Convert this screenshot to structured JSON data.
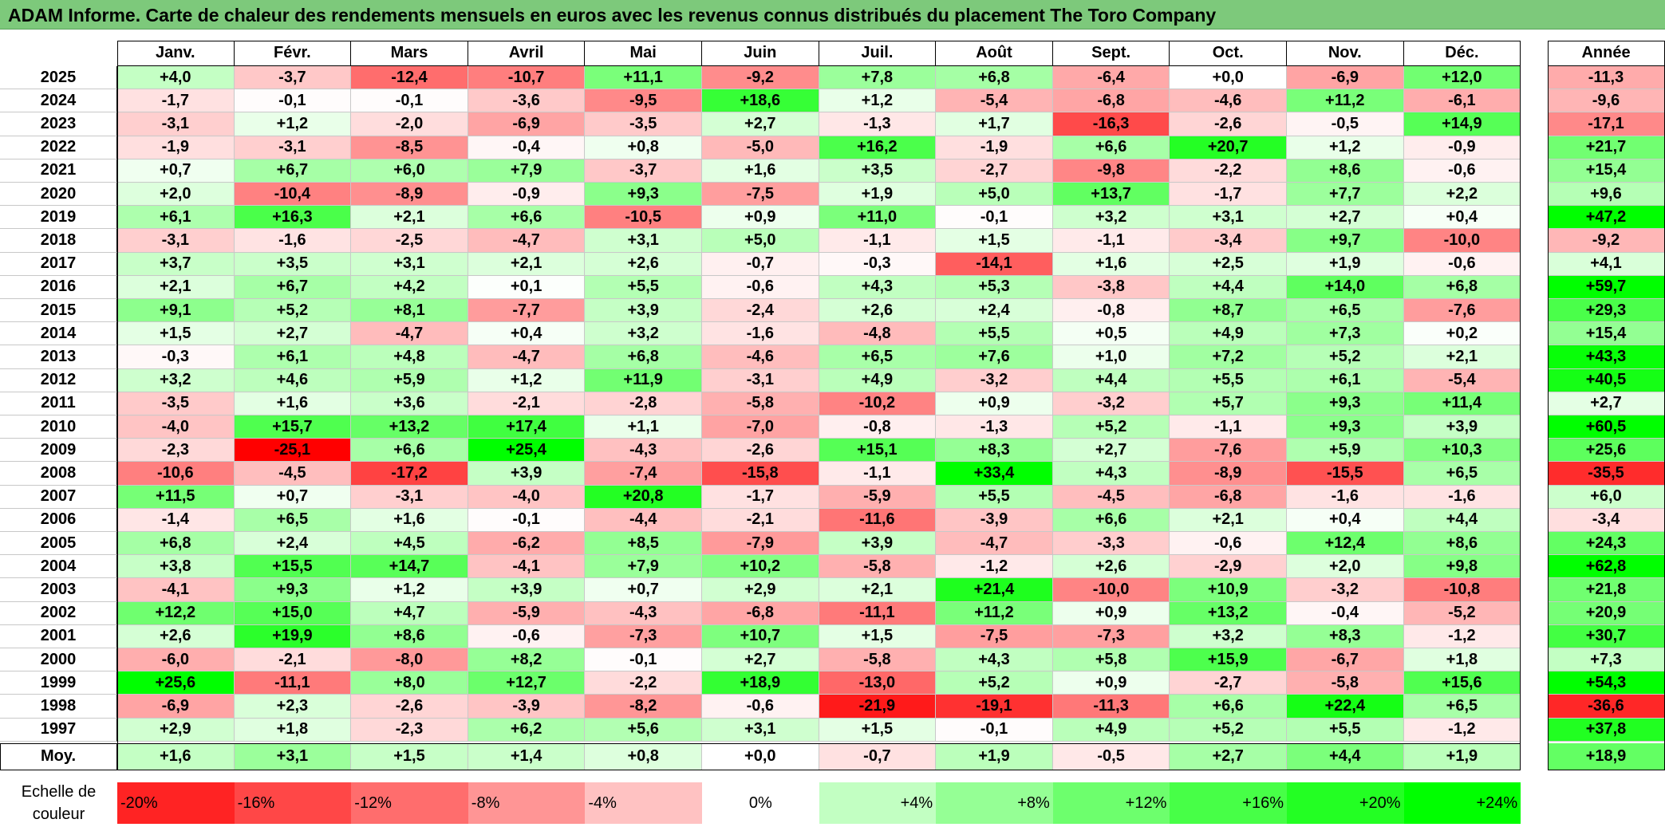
{
  "title": "ADAM Informe. Carte de chaleur des rendements mensuels en euros avec les revenus connus distribués du placement The Toro Company",
  "chart_data": {
    "type": "heatmap",
    "title": "ADAM Informe. Carte de chaleur des rendements mensuels en euros avec les revenus connus distribués du placement The Toro Company",
    "months": [
      "Janv.",
      "Févr.",
      "Mars",
      "Avril",
      "Mai",
      "Juin",
      "Juil.",
      "Août",
      "Sept.",
      "Oct.",
      "Nov.",
      "Déc."
    ],
    "year_header": "Année",
    "rows": [
      {
        "year": "2025",
        "values": [
          "+4,0",
          "-3,7",
          "-12,4",
          "-10,7",
          "+11,1",
          "-9,2",
          "+7,8",
          "+6,8",
          "-6,4",
          "+0,0",
          "-6,9",
          "+12,0"
        ],
        "annual": "-11,3"
      },
      {
        "year": "2024",
        "values": [
          "-1,7",
          "-0,1",
          "-0,1",
          "-3,6",
          "-9,5",
          "+18,6",
          "+1,2",
          "-5,4",
          "-6,8",
          "-4,6",
          "+11,2",
          "-6,1"
        ],
        "annual": "-9,6"
      },
      {
        "year": "2023",
        "values": [
          "-3,1",
          "+1,2",
          "-2,0",
          "-6,9",
          "-3,5",
          "+2,7",
          "-1,3",
          "+1,7",
          "-16,3",
          "-2,6",
          "-0,5",
          "+14,9"
        ],
        "annual": "-17,1"
      },
      {
        "year": "2022",
        "values": [
          "-1,9",
          "-3,1",
          "-8,5",
          "-0,4",
          "+0,8",
          "-5,0",
          "+16,2",
          "-1,9",
          "+6,6",
          "+20,7",
          "+1,2",
          "-0,9"
        ],
        "annual": "+21,7"
      },
      {
        "year": "2021",
        "values": [
          "+0,7",
          "+6,7",
          "+6,0",
          "+7,9",
          "-3,7",
          "+1,6",
          "+3,5",
          "-2,7",
          "-9,8",
          "-2,2",
          "+8,6",
          "-0,6"
        ],
        "annual": "+15,4"
      },
      {
        "year": "2020",
        "values": [
          "+2,0",
          "-10,4",
          "-8,9",
          "-0,9",
          "+9,3",
          "-7,5",
          "+1,9",
          "+5,0",
          "+13,7",
          "-1,7",
          "+7,7",
          "+2,2"
        ],
        "annual": "+9,6"
      },
      {
        "year": "2019",
        "values": [
          "+6,1",
          "+16,3",
          "+2,1",
          "+6,6",
          "-10,5",
          "+0,9",
          "+11,0",
          "-0,1",
          "+3,2",
          "+3,1",
          "+2,7",
          "+0,4"
        ],
        "annual": "+47,2"
      },
      {
        "year": "2018",
        "values": [
          "-3,1",
          "-1,6",
          "-2,5",
          "-4,7",
          "+3,1",
          "+5,0",
          "-1,1",
          "+1,5",
          "-1,1",
          "-3,4",
          "+9,7",
          "-10,0"
        ],
        "annual": "-9,2"
      },
      {
        "year": "2017",
        "values": [
          "+3,7",
          "+3,5",
          "+3,1",
          "+2,1",
          "+2,6",
          "-0,7",
          "-0,3",
          "-14,1",
          "+1,6",
          "+2,5",
          "+1,9",
          "-0,6"
        ],
        "annual": "+4,1"
      },
      {
        "year": "2016",
        "values": [
          "+2,1",
          "+6,7",
          "+4,2",
          "+0,1",
          "+5,5",
          "-0,6",
          "+4,3",
          "+5,3",
          "-3,8",
          "+4,4",
          "+14,0",
          "+6,8"
        ],
        "annual": "+59,7"
      },
      {
        "year": "2015",
        "values": [
          "+9,1",
          "+5,2",
          "+8,1",
          "-7,7",
          "+3,9",
          "-2,4",
          "+2,6",
          "+2,4",
          "-0,8",
          "+8,7",
          "+6,5",
          "-7,6"
        ],
        "annual": "+29,3"
      },
      {
        "year": "2014",
        "values": [
          "+1,5",
          "+2,7",
          "-4,7",
          "+0,4",
          "+3,2",
          "-1,6",
          "-4,8",
          "+5,5",
          "+0,5",
          "+4,9",
          "+7,3",
          "+0,2"
        ],
        "annual": "+15,4"
      },
      {
        "year": "2013",
        "values": [
          "-0,3",
          "+6,1",
          "+4,8",
          "-4,7",
          "+6,8",
          "-4,6",
          "+6,5",
          "+7,6",
          "+1,0",
          "+7,2",
          "+5,2",
          "+2,1"
        ],
        "annual": "+43,3"
      },
      {
        "year": "2012",
        "values": [
          "+3,2",
          "+4,6",
          "+5,9",
          "+1,2",
          "+11,9",
          "-3,1",
          "+4,9",
          "-3,2",
          "+4,4",
          "+5,5",
          "+6,1",
          "-5,4"
        ],
        "annual": "+40,5"
      },
      {
        "year": "2011",
        "values": [
          "-3,5",
          "+1,6",
          "+3,6",
          "-2,1",
          "-2,8",
          "-5,8",
          "-10,2",
          "+0,9",
          "-3,2",
          "+5,7",
          "+9,3",
          "+11,4"
        ],
        "annual": "+2,7"
      },
      {
        "year": "2010",
        "values": [
          "-4,0",
          "+15,7",
          "+13,2",
          "+17,4",
          "+1,1",
          "-7,0",
          "-0,8",
          "-1,3",
          "+5,2",
          "-1,1",
          "+9,3",
          "+3,9"
        ],
        "annual": "+60,5"
      },
      {
        "year": "2009",
        "values": [
          "-2,3",
          "-25,1",
          "+6,6",
          "+25,4",
          "-4,3",
          "-2,6",
          "+15,1",
          "+8,3",
          "+2,7",
          "-7,6",
          "+5,9",
          "+10,3"
        ],
        "annual": "+25,6"
      },
      {
        "year": "2008",
        "values": [
          "-10,6",
          "-4,5",
          "-17,2",
          "+3,9",
          "-7,4",
          "-15,8",
          "-1,1",
          "+33,4",
          "+4,3",
          "-8,9",
          "-15,5",
          "+6,5"
        ],
        "annual": "-35,5"
      },
      {
        "year": "2007",
        "values": [
          "+11,5",
          "+0,7",
          "-3,1",
          "-4,0",
          "+20,8",
          "-1,7",
          "-5,9",
          "+5,5",
          "-4,5",
          "-6,8",
          "-1,6",
          "-1,6"
        ],
        "annual": "+6,0"
      },
      {
        "year": "2006",
        "values": [
          "-1,4",
          "+6,5",
          "+1,6",
          "-0,1",
          "-4,4",
          "-2,1",
          "-11,6",
          "-3,9",
          "+6,6",
          "+2,1",
          "+0,4",
          "+4,4"
        ],
        "annual": "-3,4"
      },
      {
        "year": "2005",
        "values": [
          "+6,8",
          "+2,4",
          "+4,5",
          "-6,2",
          "+8,5",
          "-7,9",
          "+3,9",
          "-4,7",
          "-3,3",
          "-0,6",
          "+12,4",
          "+8,6"
        ],
        "annual": "+24,3"
      },
      {
        "year": "2004",
        "values": [
          "+3,8",
          "+15,5",
          "+14,7",
          "-4,1",
          "+7,9",
          "+10,2",
          "-5,8",
          "-1,2",
          "+2,6",
          "-2,9",
          "+2,0",
          "+9,8"
        ],
        "annual": "+62,8"
      },
      {
        "year": "2003",
        "values": [
          "-4,1",
          "+9,3",
          "+1,2",
          "+3,9",
          "+0,7",
          "+2,9",
          "+2,1",
          "+21,4",
          "-10,0",
          "+10,9",
          "-3,2",
          "-10,8"
        ],
        "annual": "+21,8"
      },
      {
        "year": "2002",
        "values": [
          "+12,2",
          "+15,0",
          "+4,7",
          "-5,9",
          "-4,3",
          "-6,8",
          "-11,1",
          "+11,2",
          "+0,9",
          "+13,2",
          "-0,4",
          "-5,2"
        ],
        "annual": "+20,9"
      },
      {
        "year": "2001",
        "values": [
          "+2,6",
          "+19,9",
          "+8,6",
          "-0,6",
          "-7,3",
          "+10,7",
          "+1,5",
          "-7,5",
          "-7,3",
          "+3,2",
          "+8,3",
          "-1,2"
        ],
        "annual": "+30,7"
      },
      {
        "year": "2000",
        "values": [
          "-6,0",
          "-2,1",
          "-8,0",
          "+8,2",
          "-0,1",
          "+2,7",
          "-5,8",
          "+4,3",
          "+5,8",
          "+15,9",
          "-6,7",
          "+1,8"
        ],
        "annual": "+7,3"
      },
      {
        "year": "1999",
        "values": [
          "+25,6",
          "-11,1",
          "+8,0",
          "+12,7",
          "-2,2",
          "+18,9",
          "-13,0",
          "+5,2",
          "+0,9",
          "-2,7",
          "-5,8",
          "+15,6"
        ],
        "annual": "+54,3"
      },
      {
        "year": "1998",
        "values": [
          "-6,9",
          "+2,3",
          "-2,6",
          "-3,9",
          "-8,2",
          "-0,6",
          "-21,9",
          "-19,1",
          "-11,3",
          "+6,6",
          "+22,4",
          "+6,5"
        ],
        "annual": "-36,6"
      },
      {
        "year": "1997",
        "values": [
          "+2,9",
          "+1,8",
          "-2,3",
          "+6,2",
          "+5,6",
          "+3,1",
          "+1,5",
          "-0,1",
          "+4,9",
          "+5,2",
          "+5,5",
          "-1,2"
        ],
        "annual": "+37,8"
      }
    ],
    "average": {
      "label": "Moy.",
      "values": [
        "+1,6",
        "+3,1",
        "+1,5",
        "+1,4",
        "+0,8",
        "+0,0",
        "-0,7",
        "+1,9",
        "-0,5",
        "+2,7",
        "+4,4",
        "+1,9"
      ],
      "annual": "+18,9"
    },
    "scale": {
      "label": "Echelle de couleur",
      "stops": [
        {
          "label": "-20%",
          "value": -20
        },
        {
          "label": "-16%",
          "value": -16
        },
        {
          "label": "-12%",
          "value": -12
        },
        {
          "label": "-8%",
          "value": -8
        },
        {
          "label": "-4%",
          "value": -4
        },
        {
          "label": "0%",
          "value": 0
        },
        {
          "label": "+4%",
          "value": 4
        },
        {
          "label": "+8%",
          "value": 8
        },
        {
          "label": "+12%",
          "value": 12
        },
        {
          "label": "+16%",
          "value": 16
        },
        {
          "label": "+20%",
          "value": 20
        },
        {
          "label": "+24%",
          "value": 24
        }
      ]
    },
    "colors": {
      "negative": "#ff0000",
      "neutral": "#ffffff",
      "positive": "#00ff00",
      "title_bar": "#7dc97b"
    }
  }
}
